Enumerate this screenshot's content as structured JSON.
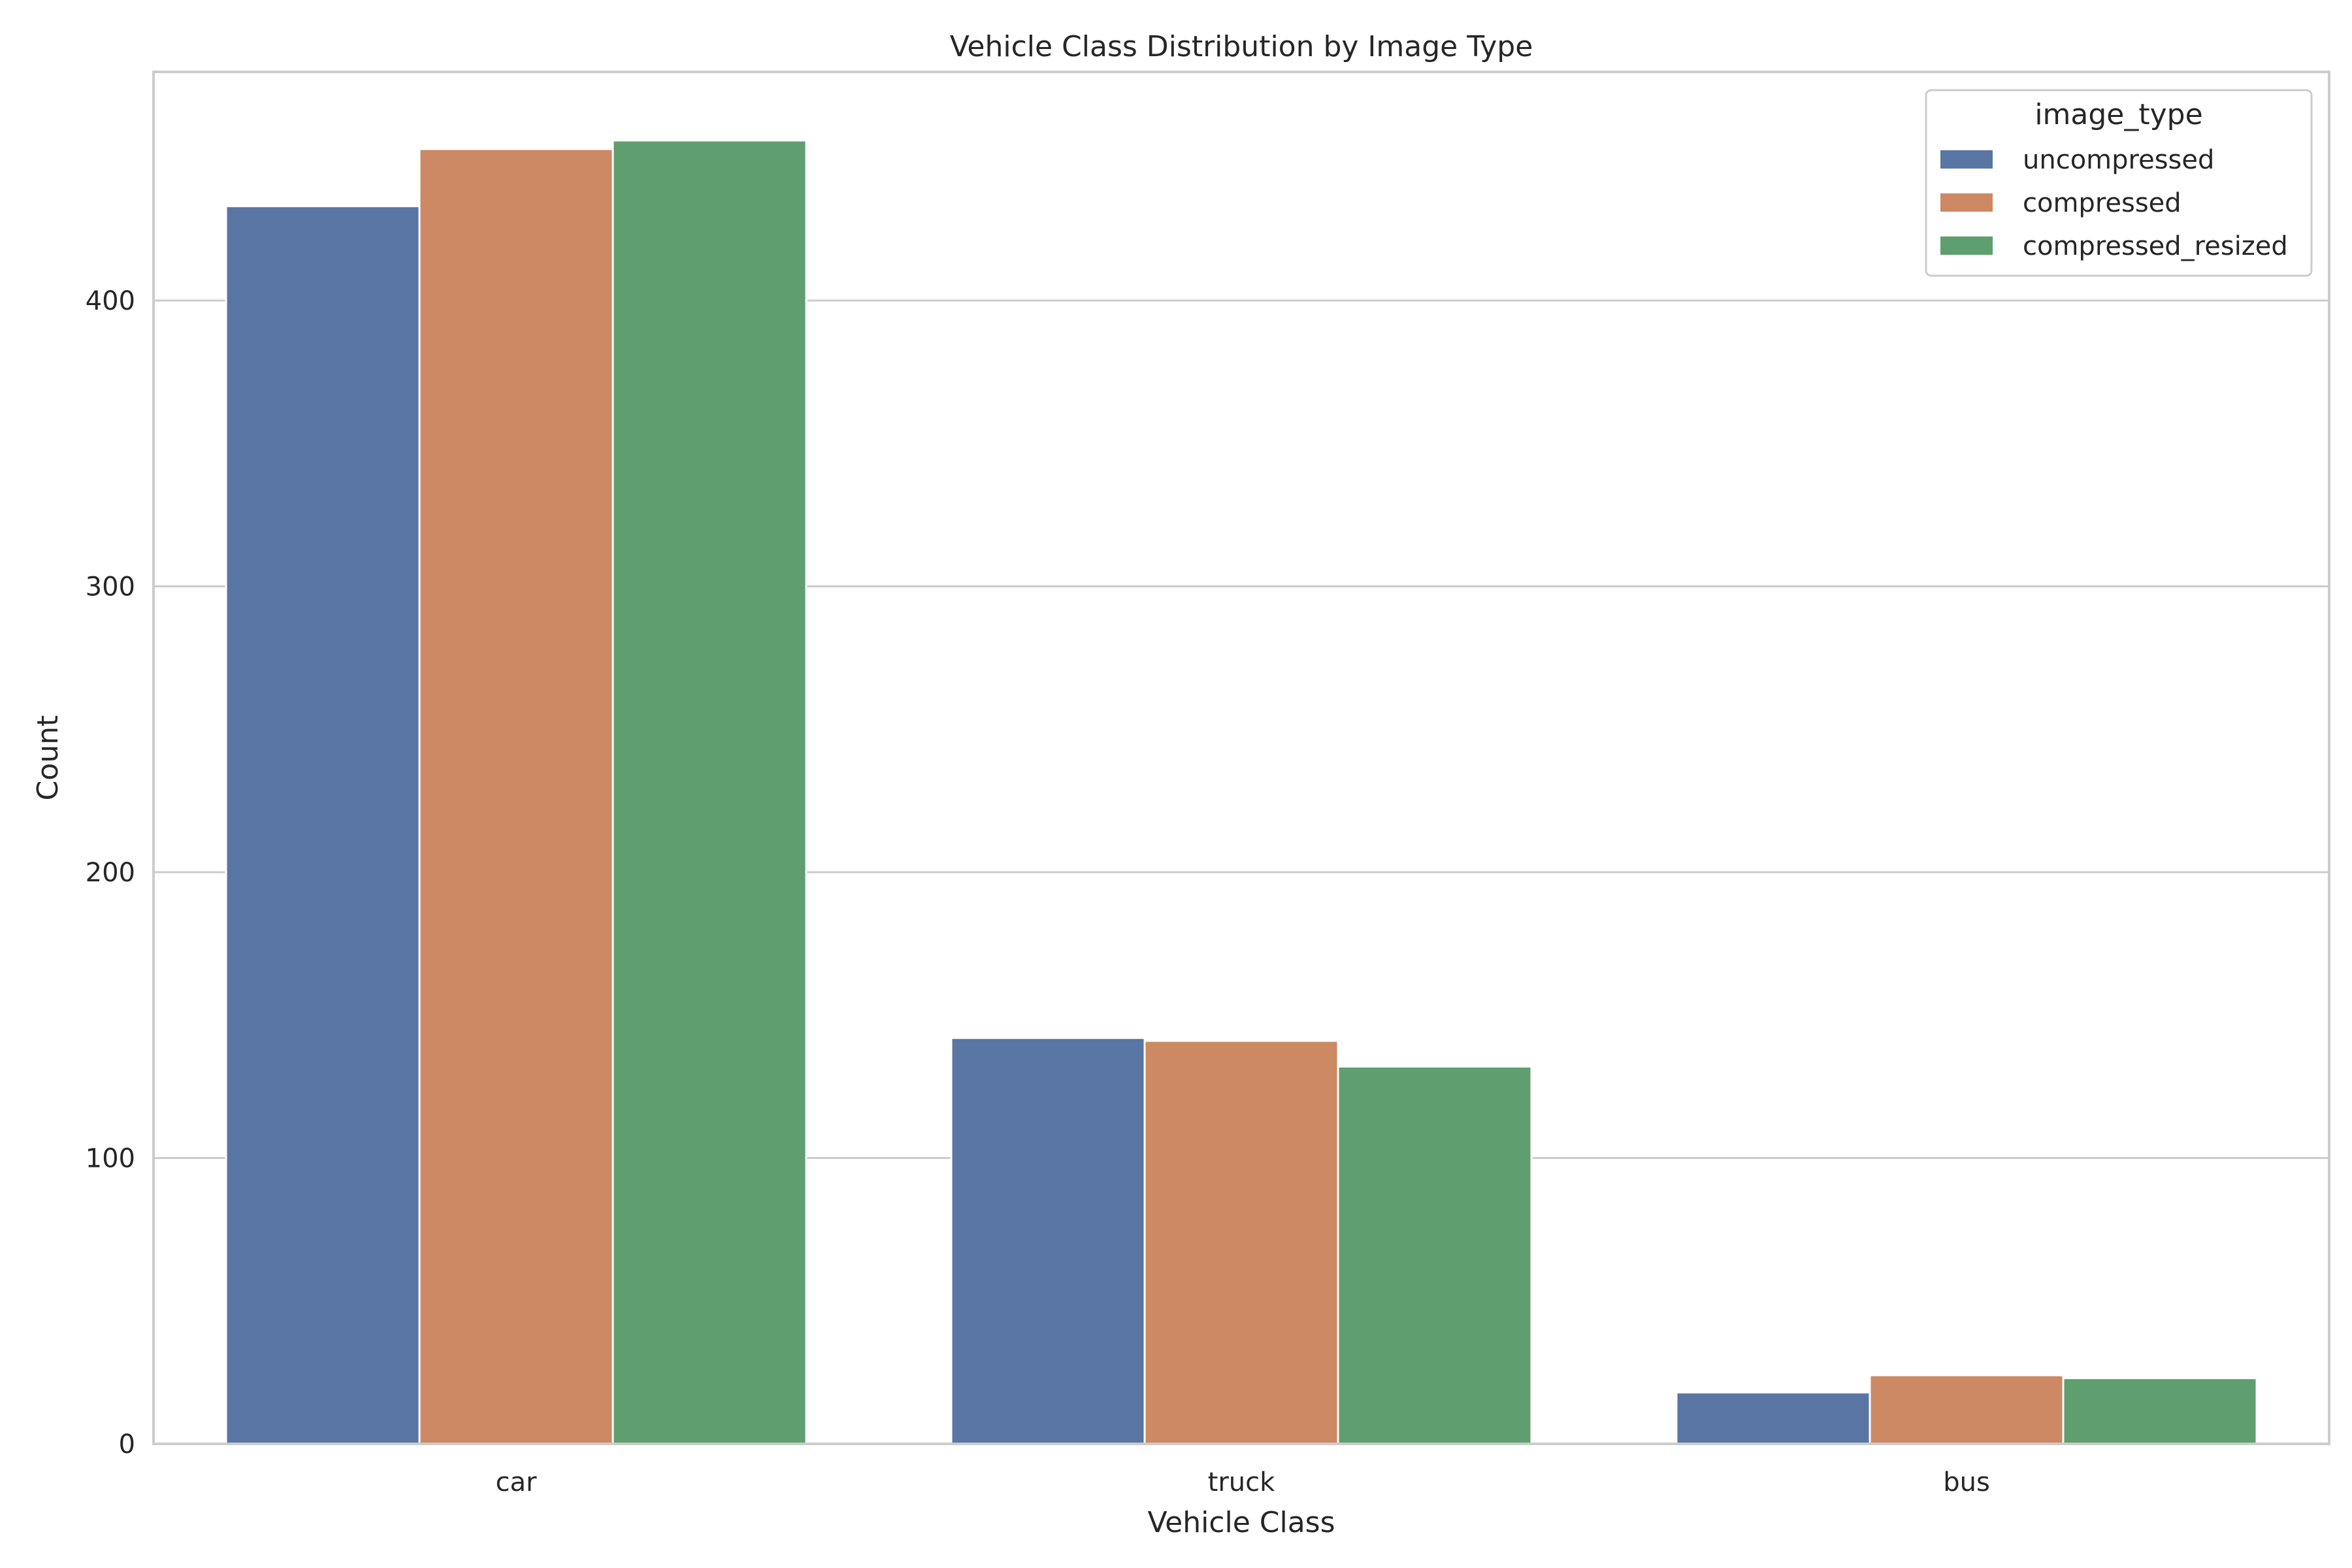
{
  "chart_data": {
    "type": "bar",
    "title": "Vehicle Class Distribution by Image Type",
    "xlabel": "Vehicle Class",
    "ylabel": "Count",
    "categories": [
      "car",
      "truck",
      "bus"
    ],
    "series": [
      {
        "name": "uncompressed",
        "values": [
          433,
          142,
          18
        ],
        "color": "#5975a4"
      },
      {
        "name": "compressed",
        "values": [
          453,
          141,
          24
        ],
        "color": "#cc8963"
      },
      {
        "name": "compressed_resized",
        "values": [
          456,
          132,
          23
        ],
        "color": "#5f9e6e"
      }
    ],
    "ylim": [
      0,
      480
    ],
    "yticks": [
      0,
      100,
      200,
      300,
      400
    ],
    "grid": "horizontal",
    "legend": {
      "title": "image_type",
      "position": "top-right"
    }
  }
}
